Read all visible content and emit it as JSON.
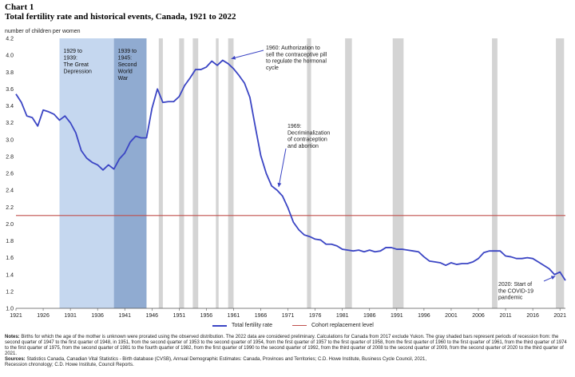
{
  "header": {
    "chart_label": "Chart 1",
    "title": "Total fertility rate and historical events, Canada, 1921 to 2022"
  },
  "chart_data": {
    "type": "line",
    "title": "Total fertility rate and historical events, Canada, 1921 to 2022",
    "ylabel": "number of children per women",
    "xlabel": "",
    "ylim": [
      1.0,
      4.2
    ],
    "yticks": [
      "1.0",
      "1.2",
      "1.4",
      "1.6",
      "1.8",
      "2.0",
      "2.2",
      "2.4",
      "2.6",
      "2.8",
      "3.0",
      "3.2",
      "3.4",
      "3.6",
      "3.8",
      "4.0",
      "4.2"
    ],
    "xlim": [
      1921,
      2022
    ],
    "xticks": [
      "1921",
      "1926",
      "1931",
      "1936",
      "1941",
      "1946",
      "1951",
      "1956",
      "1961",
      "1966",
      "1971",
      "1976",
      "1981",
      "1986",
      "1991",
      "1996",
      "2001",
      "2006",
      "2011",
      "2016",
      "2021"
    ],
    "grid": false,
    "legend": "bottom",
    "series": [
      {
        "name": "Total fertility rate",
        "color": "#3b45c4",
        "x": [
          1921,
          1922,
          1923,
          1924,
          1925,
          1926,
          1927,
          1928,
          1929,
          1930,
          1931,
          1932,
          1933,
          1934,
          1935,
          1936,
          1937,
          1938,
          1939,
          1940,
          1941,
          1942,
          1943,
          1944,
          1945,
          1946,
          1947,
          1948,
          1949,
          1950,
          1951,
          1952,
          1953,
          1954,
          1955,
          1956,
          1957,
          1958,
          1959,
          1960,
          1961,
          1962,
          1963,
          1964,
          1965,
          1966,
          1967,
          1968,
          1969,
          1970,
          1971,
          1972,
          1973,
          1974,
          1975,
          1976,
          1977,
          1978,
          1979,
          1980,
          1981,
          1982,
          1983,
          1984,
          1985,
          1986,
          1987,
          1988,
          1989,
          1990,
          1991,
          1992,
          1993,
          1994,
          1995,
          1996,
          1997,
          1998,
          1999,
          2000,
          2001,
          2002,
          2003,
          2004,
          2005,
          2006,
          2007,
          2008,
          2009,
          2010,
          2011,
          2012,
          2013,
          2014,
          2015,
          2016,
          2017,
          2018,
          2019,
          2020,
          2021,
          2022
        ],
        "values": [
          3.54,
          3.44,
          3.28,
          3.26,
          3.16,
          3.35,
          3.33,
          3.3,
          3.23,
          3.28,
          3.2,
          3.08,
          2.87,
          2.78,
          2.73,
          2.7,
          2.64,
          2.7,
          2.65,
          2.77,
          2.84,
          2.97,
          3.04,
          3.02,
          3.02,
          3.37,
          3.6,
          3.44,
          3.45,
          3.45,
          3.51,
          3.64,
          3.73,
          3.83,
          3.83,
          3.86,
          3.93,
          3.88,
          3.94,
          3.9,
          3.84,
          3.76,
          3.67,
          3.5,
          3.15,
          2.81,
          2.6,
          2.45,
          2.4,
          2.33,
          2.19,
          2.02,
          1.93,
          1.87,
          1.85,
          1.82,
          1.81,
          1.76,
          1.76,
          1.74,
          1.7,
          1.69,
          1.68,
          1.69,
          1.67,
          1.69,
          1.67,
          1.68,
          1.72,
          1.72,
          1.7,
          1.7,
          1.69,
          1.68,
          1.67,
          1.61,
          1.56,
          1.55,
          1.54,
          1.51,
          1.54,
          1.52,
          1.53,
          1.53,
          1.55,
          1.59,
          1.66,
          1.68,
          1.68,
          1.68,
          1.62,
          1.61,
          1.59,
          1.59,
          1.6,
          1.59,
          1.55,
          1.51,
          1.47,
          1.4,
          1.43,
          1.33
        ]
      },
      {
        "name": "Cohort replacement level",
        "color": "#c0504d",
        "x": [
          1921,
          2022
        ],
        "values": [
          2.1,
          2.1
        ]
      }
    ],
    "shaded_periods": [
      {
        "label_lines": [
          "1929 to",
          "1939:",
          "The Great",
          "Depression"
        ],
        "start": 1929,
        "end": 1939,
        "color": "#c5d7ef"
      },
      {
        "label_lines": [
          "1939 to",
          "1945:",
          "Second",
          "World",
          "War"
        ],
        "start": 1939,
        "end": 1945,
        "color": "#90abd1"
      }
    ],
    "recessions": [
      [
        1947.25,
        1948.0
      ],
      [
        1951.0,
        1951.9
      ],
      [
        1953.5,
        1954.5
      ],
      [
        1957.75,
        1958.25
      ],
      [
        1960.0,
        1961.0
      ],
      [
        1974.5,
        1975.25
      ],
      [
        1981.5,
        1982.75
      ],
      [
        1990.25,
        1992.25
      ],
      [
        2008.5,
        2009.5
      ],
      [
        2020.25,
        2021.75
      ]
    ],
    "recession_color": "#d4d4d4",
    "annotations": [
      {
        "id": "pill",
        "lines": [
          "1960: Authorization to",
          "sell the contraceptive pill",
          "to regulate the hormonal",
          "cycle"
        ],
        "x": 1960,
        "y": 3.93
      },
      {
        "id": "decrim",
        "lines": [
          "1969:",
          "Decriminalization",
          "of contraception",
          "and abortion"
        ],
        "x": 1969,
        "y": 2.4
      },
      {
        "id": "covid",
        "lines": [
          "2020: Start of",
          "the COVID-19",
          "pandemic"
        ],
        "x": 2020,
        "y": 1.41
      }
    ]
  },
  "notes": {
    "notes_label": "Notes:",
    "notes_text": "Births for which the age of the mother is unknown were prorated using the observed distribution. The 2022 data are considered preliminary. Calculations for Canada from 2017 exclude Yukon. The gray shaded bars represent periods of recession from: the second quarter of 1947 to the first quarter of 1948, in 1951, from the second quarter of 1953 to the second quarter of 1954, from the first quarter of 1957 to the first quarter of 1958, from the first quarter of 1960 to the first quarter of 1961, from the third quarter of 1974 to the first quarter of 1975, from the second quarter of 1981 to the fourth quarter of 1982, from the first quarter of 1990 to the second quarter of 1992, from the third quarter of 2008 to the second quarter of 2009, from the second quarter of 2020 to the third quarter of 2021.",
    "sources_label": "Sources:",
    "sources_text": "Statistics Canada, Canadian Vital Statistics - Birth database (CVSB), Annual Demographic Estimates: Canada, Provinces and Territories; C.D. Howe Institute, Business Cycle Council, 2021,",
    "sources_text2": "Recession chronology; C.D. Howe Institute, Council Reports."
  }
}
